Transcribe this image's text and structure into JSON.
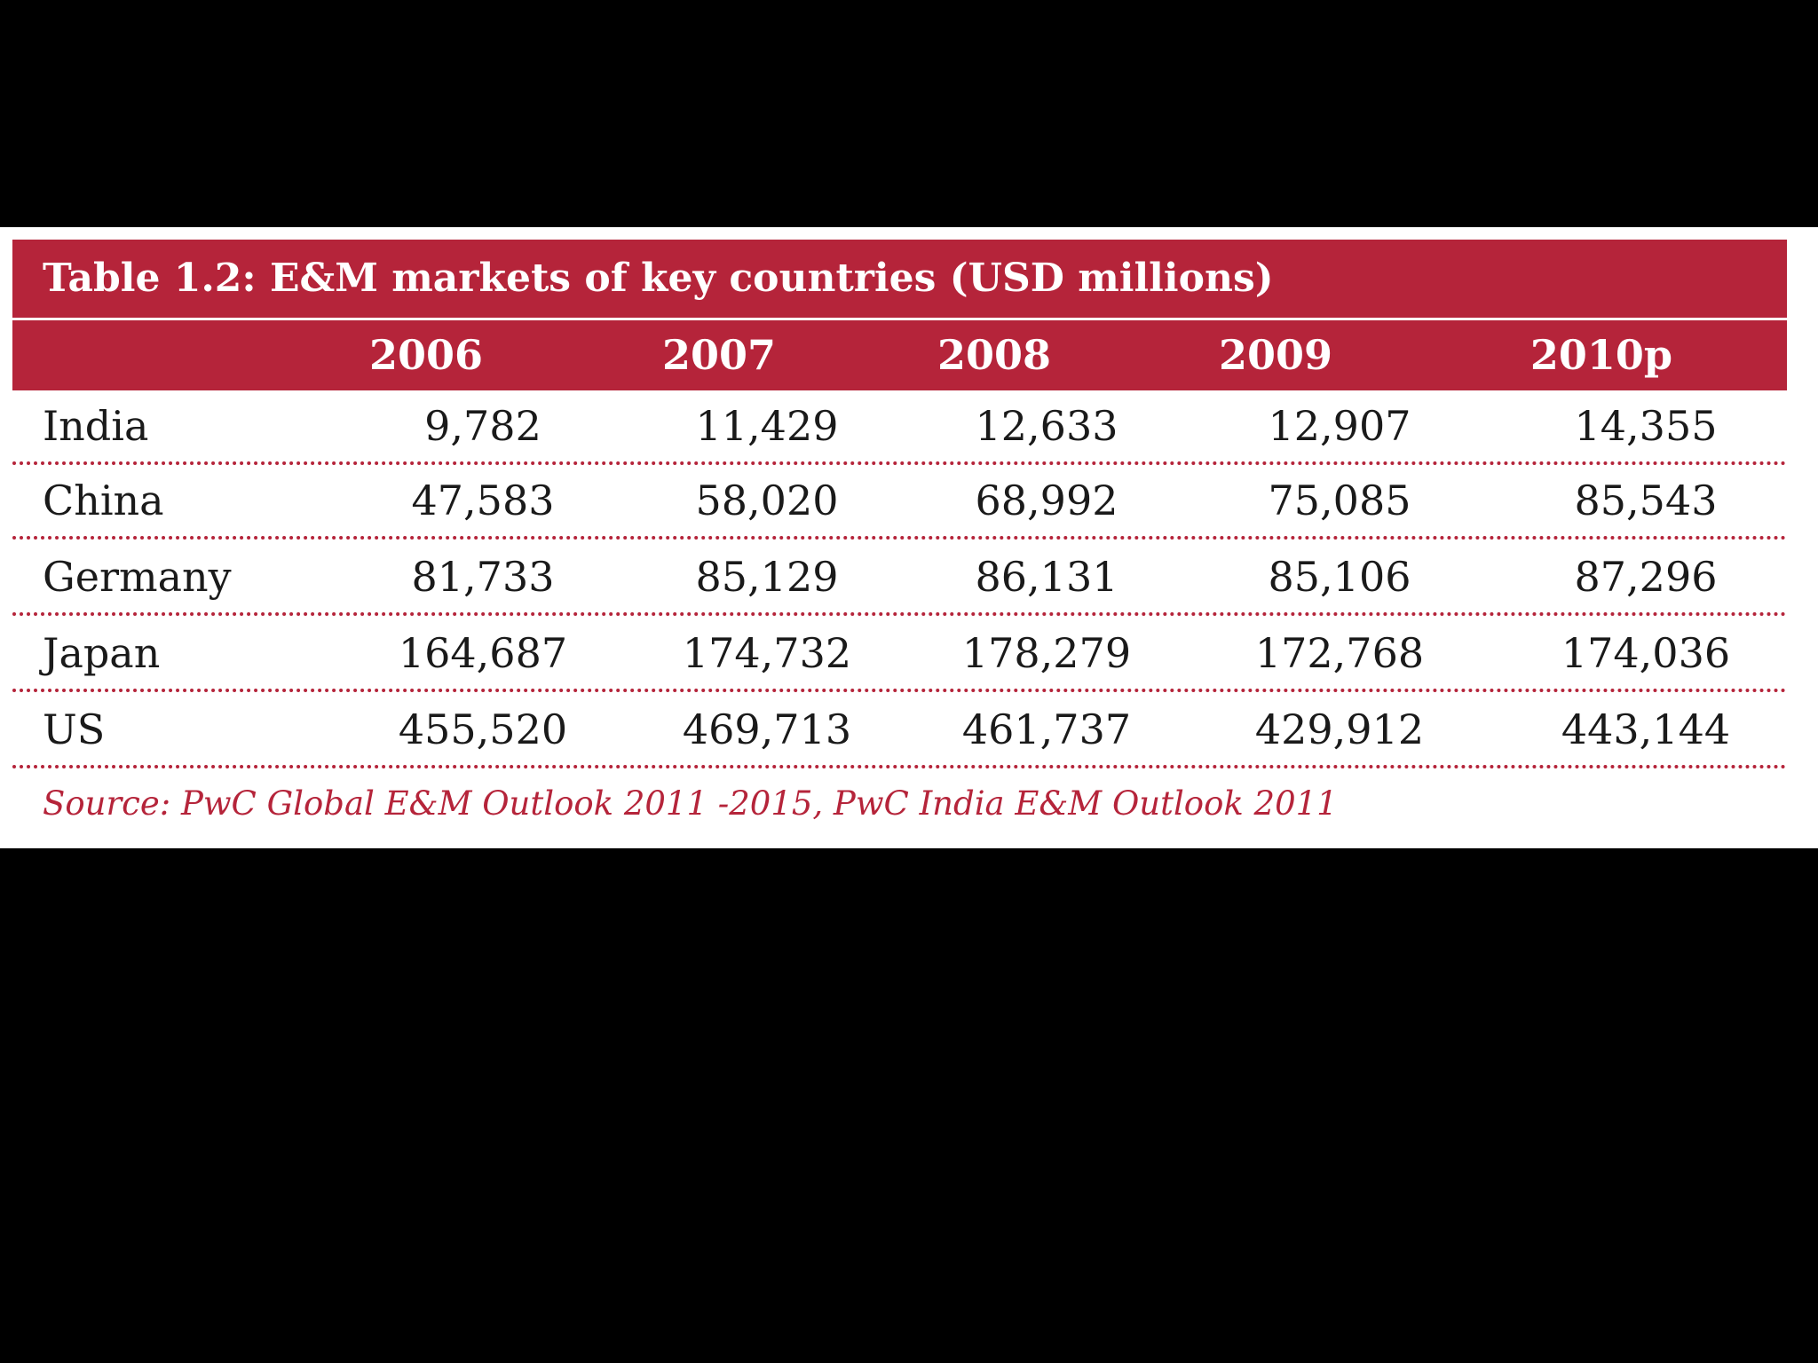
{
  "table": {
    "title": "Table 1.2: E&M markets of key countries (USD millions)",
    "columns": [
      "",
      "2006",
      "2007",
      "2008",
      "2009",
      "2010p"
    ],
    "rows": [
      {
        "country": "India",
        "values": [
          "9,782",
          "11,429",
          "12,633",
          "12,907",
          "14,355"
        ]
      },
      {
        "country": "China",
        "values": [
          "47,583",
          "58,020",
          "68,992",
          "75,085",
          "85,543"
        ]
      },
      {
        "country": "Germany",
        "values": [
          "81,733",
          "85,129",
          "86,131",
          "85,106",
          "87,296"
        ]
      },
      {
        "country": "Japan",
        "values": [
          "164,687",
          "174,732",
          "178,279",
          "172,768",
          "174,036"
        ]
      },
      {
        "country": "US",
        "values": [
          "455,520",
          "469,713",
          "461,737",
          "429,912",
          "443,144"
        ]
      }
    ],
    "source": "Source: PwC Global E&M Outlook 2011 -2015, PwC India E&M Outlook 2011"
  },
  "colors": {
    "accent": "#b5243a",
    "background": "#000000",
    "panel": "#ffffff",
    "text": "#1a1a1a"
  }
}
